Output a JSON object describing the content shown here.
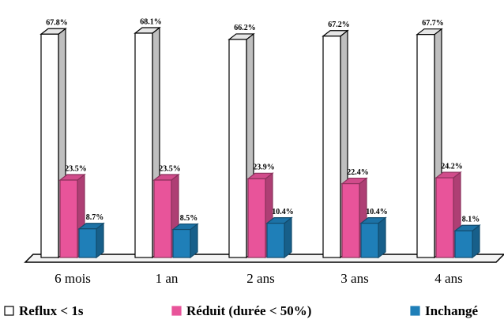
{
  "chart_data": {
    "type": "bar3d",
    "categories": [
      "6 mois",
      "1 an",
      "2 ans",
      "3 ans",
      "4 ans"
    ],
    "series": [
      {
        "name": "Reflux < 1s",
        "color": "#ffffff",
        "values": [
          67.8,
          68.1,
          66.2,
          67.2,
          67.7
        ],
        "value_labels": [
          "67.8%",
          "68.1%",
          "66.2%",
          "67.2%",
          "67.7%"
        ]
      },
      {
        "name": "Réduit (durée < 50%)",
        "color": "#e8549a",
        "values": [
          23.5,
          23.5,
          23.9,
          22.4,
          24.2
        ],
        "value_labels": [
          "23.5%",
          "23.5%",
          "23.9%",
          "22.4%",
          "24.2%"
        ]
      },
      {
        "name": "Inchangé",
        "color": "#1f7fb8",
        "values": [
          8.7,
          8.5,
          10.4,
          10.4,
          8.1
        ],
        "value_labels": [
          "8.7%",
          "8.5%",
          "10.4%",
          "10.4%",
          "8.1%"
        ]
      }
    ]
  }
}
